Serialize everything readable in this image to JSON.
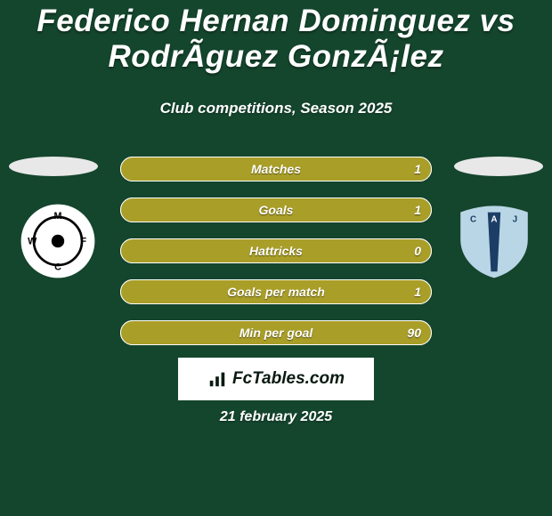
{
  "background_color": "#14452d",
  "text_color": "#ffffff",
  "title": "Federico Hernan Dominguez vs RodrÃ­guez GonzÃ¡lez",
  "title_color": "#ffffff",
  "subtitle": "Club competitions, Season 2025",
  "subtitle_color": "#ffffff",
  "bars": {
    "left_color": "#a99e28",
    "right_color": "#a99e28",
    "border_color": "#ffffff",
    "label_color": "#ffffff",
    "value_color": "#ffffff",
    "rows": [
      {
        "label": "Matches",
        "left_value": "",
        "right_value": "1",
        "left_pct": 0,
        "right_pct": 100
      },
      {
        "label": "Goals",
        "left_value": "",
        "right_value": "1",
        "left_pct": 0,
        "right_pct": 100
      },
      {
        "label": "Hattricks",
        "left_value": "",
        "right_value": "0",
        "left_pct": 0,
        "right_pct": 100
      },
      {
        "label": "Goals per match",
        "left_value": "",
        "right_value": "1",
        "left_pct": 0,
        "right_pct": 100
      },
      {
        "label": "Min per goal",
        "left_value": "",
        "right_value": "90",
        "left_pct": 0,
        "right_pct": 100
      }
    ]
  },
  "side_oval_color": "#e8e8e8",
  "crest_left": {
    "bg": "#ffffff",
    "ring": "#000000",
    "text": "M W F C",
    "text_color": "#000000"
  },
  "crest_right": {
    "top_color": "#b9d6e6",
    "stripe_color": "#1c3e66",
    "text": "C A J",
    "text_color": "#1c3e66"
  },
  "fctables": {
    "bg": "#ffffff",
    "text": "FcTables.com",
    "text_color": "#0a1a12",
    "icon_color": "#0a1a12"
  },
  "footer_date": "21 february 2025",
  "footer_date_color": "#ffffff"
}
